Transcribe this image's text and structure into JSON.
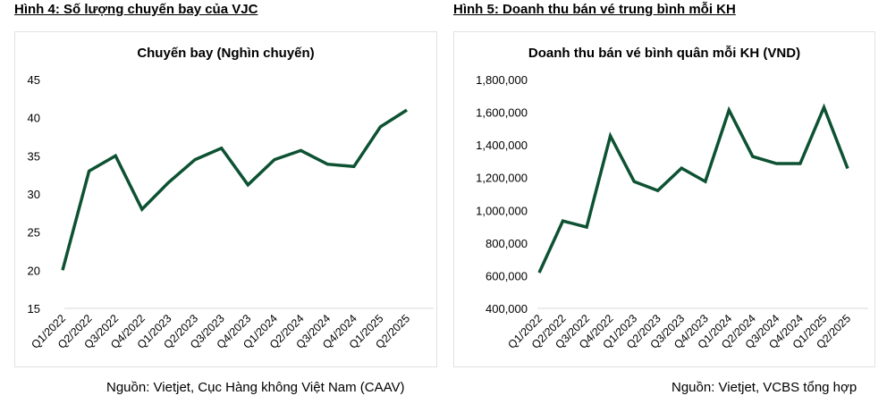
{
  "figures": [
    {
      "label": "Hình 4: Số lượng chuyến bay của VJC",
      "source": "Nguồn: Vietjet, Cục Hàng không Việt Nam (CAAV)"
    },
    {
      "label": "Hình 5: Doanh thu bán vé trung bình mỗi KH",
      "source": "Nguồn: Vietjet, VCBS tổng hợp"
    }
  ],
  "colors": {
    "line": "#0d5232",
    "axis": "#d9d9d9",
    "text": "#000000"
  },
  "chart_data": [
    {
      "type": "line",
      "title": "Chuyến bay (Nghìn chuyến)",
      "categories": [
        "Q1/2022",
        "Q2/2022",
        "Q3/2022",
        "Q4/2022",
        "Q1/2023",
        "Q2/2023",
        "Q3/2023",
        "Q4/2023",
        "Q1/2024",
        "Q2/2024",
        "Q3/2024",
        "Q4/2024",
        "Q1/2025",
        "Q2/2025"
      ],
      "values": [
        20,
        33,
        35,
        28,
        31.5,
        34.5,
        36,
        31.2,
        34.5,
        35.7,
        33.9,
        33.6,
        38.8,
        41
      ],
      "ylim": [
        15,
        45
      ],
      "yticks": [
        15,
        20,
        25,
        30,
        35,
        40,
        45
      ],
      "ytick_labels": [
        "15",
        "20",
        "25",
        "30",
        "35",
        "40",
        "45"
      ],
      "grid": false
    },
    {
      "type": "line",
      "title": "Doanh thu bán vé bình quân mỗi KH (VND)",
      "categories": [
        "Q1/2022",
        "Q2/2022",
        "Q3/2022",
        "Q4/2022",
        "Q1/2023",
        "Q2/2023",
        "Q3/2023",
        "Q4/2023",
        "Q1/2024",
        "Q2/2024",
        "Q3/2024",
        "Q4/2024",
        "Q1/2025",
        "Q2/2025"
      ],
      "values": [
        618000,
        935000,
        897000,
        1455000,
        1176000,
        1121000,
        1258000,
        1176000,
        1613000,
        1329000,
        1286000,
        1286000,
        1630000,
        1256000
      ],
      "ylim": [
        400000,
        1800000
      ],
      "yticks": [
        400000,
        600000,
        800000,
        1000000,
        1200000,
        1400000,
        1600000,
        1800000
      ],
      "ytick_labels": [
        "400,000",
        "600,000",
        "800,000",
        "1,000,000",
        "1,200,000",
        "1,400,000",
        "1,600,000",
        "1,800,000"
      ],
      "grid": false
    }
  ]
}
